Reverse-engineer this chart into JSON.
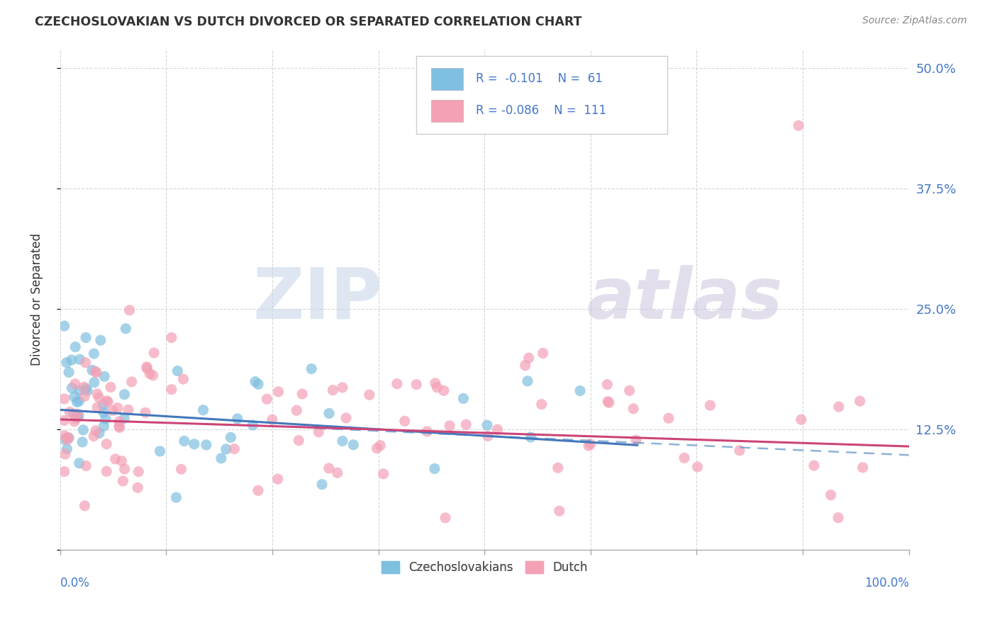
{
  "title": "CZECHOSLOVAKIAN VS DUTCH DIVORCED OR SEPARATED CORRELATION CHART",
  "source": "Source: ZipAtlas.com",
  "ylabel": "Divorced or Separated",
  "blue_color": "#7fbfdf",
  "pink_color": "#f4a0b5",
  "blue_line_color": "#4477bb",
  "pink_line_color": "#cc4477",
  "dashed_blue_color": "#6699cc",
  "dashed_pink_color": "#dd88aa",
  "background_color": "#ffffff",
  "grid_color": "#cccccc",
  "ytick_color": "#4477cc",
  "xtick_color": "#4477cc",
  "title_color": "#333333",
  "source_color": "#888888",
  "ylabel_color": "#333333",
  "watermark_zip_color": "#c8d8e8",
  "watermark_atlas_color": "#d0c8e0",
  "legend_text_color": "#4477cc",
  "bottom_legend_color": "#555555"
}
